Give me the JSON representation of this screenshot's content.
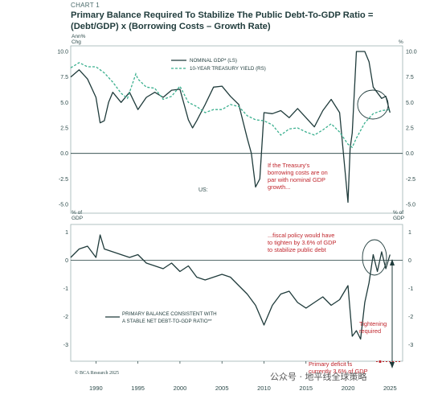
{
  "header": {
    "chart_label": "CHART 1",
    "title_line1": "Primary Balance Required To Stabilize The Public Debt-To-GDP Ratio =",
    "title_line2": "(Debt/GDP) x (Borrowing Costs – Growth Rate)"
  },
  "colors": {
    "nominal_gdp": "#1f3b3b",
    "treasury_yield": "#3bb08f",
    "primary_balance": "#1f3b3b",
    "annotation": "#c0262d"
  },
  "chart_data": [
    {
      "type": "line",
      "panel": "top",
      "region_label": "US:",
      "y_unit_left": "Ann%\nChg",
      "y_unit_right": "%",
      "ylim": [
        -5.0,
        10.0
      ],
      "yticks": [
        "10.0",
        "7.5",
        "5.0",
        "2.5",
        "0.0",
        "-2.5",
        "-5.0"
      ],
      "xlim": [
        1987,
        2026.5
      ],
      "series": [
        {
          "name": "NOMINAL GDP* (LS)",
          "style": "solid",
          "x": [
            1987,
            1988,
            1989,
            1990,
            1990.5,
            1991,
            1991.5,
            1992,
            1993,
            1994,
            1995,
            1996,
            1997,
            1998,
            1999,
            2000,
            2001,
            2001.5,
            2002,
            2003,
            2004,
            2005,
            2006,
            2007,
            2008,
            2008.5,
            2009,
            2009.5,
            2010,
            2011,
            2012,
            2013,
            2014,
            2015,
            2016,
            2017,
            2018,
            2019,
            2020,
            2020.25,
            2020.5,
            2021,
            2021.5,
            2022,
            2022.5,
            2023,
            2024,
            2024.5,
            2025
          ],
          "y": [
            7.5,
            8.2,
            7.3,
            5.5,
            3.0,
            3.2,
            5.0,
            6.0,
            5.0,
            6.0,
            4.3,
            5.5,
            6.0,
            5.5,
            6.2,
            6.3,
            3.3,
            2.5,
            3.2,
            4.8,
            6.5,
            6.6,
            5.6,
            4.8,
            1.5,
            0.0,
            -3.3,
            -2.5,
            4.0,
            3.9,
            4.2,
            3.5,
            4.4,
            3.5,
            2.6,
            4.2,
            5.3,
            4.0,
            -4.8,
            0.5,
            2.0,
            10.0,
            10.0,
            10.0,
            9.0,
            6.5,
            5.4,
            5.6,
            4.0
          ]
        },
        {
          "name": "10-YEAR TREASURY YIELD (RS)",
          "style": "dashed",
          "x": [
            1987,
            1988,
            1989,
            1990,
            1991,
            1992,
            1993,
            1993.75,
            1994.75,
            1995,
            1996,
            1997,
            1998,
            1999,
            2000,
            2001,
            2002,
            2003,
            2004,
            2005,
            2006,
            2007,
            2008,
            2009,
            2010,
            2011,
            2012,
            2013,
            2014,
            2015,
            2016,
            2017,
            2018,
            2019,
            2020,
            2020.5,
            2021,
            2022,
            2023,
            2024,
            2025
          ],
          "y": [
            8.4,
            8.9,
            8.5,
            8.5,
            7.9,
            7.0,
            5.9,
            5.4,
            7.8,
            7.3,
            6.5,
            6.4,
            5.3,
            5.6,
            6.6,
            5.0,
            4.6,
            4.0,
            4.3,
            4.3,
            4.8,
            4.6,
            3.7,
            3.3,
            3.2,
            2.8,
            1.8,
            2.4,
            2.5,
            2.1,
            1.8,
            2.3,
            2.9,
            2.1,
            0.9,
            0.6,
            1.5,
            3.0,
            3.9,
            4.2,
            4.3
          ]
        }
      ],
      "annotations": [
        "If the Treasury's",
        "borrowing costs are on",
        "par with nominal GDP",
        "growth..."
      ]
    },
    {
      "type": "line",
      "panel": "bottom",
      "y_unit_left": "% of\nGDP",
      "y_unit_right": "% of\nGDP",
      "ylim": [
        -3.9,
        1.1
      ],
      "yticks": [
        "1",
        "0",
        "-1",
        "-2",
        "-3"
      ],
      "xlim": [
        1987,
        2026.5
      ],
      "xticks": [
        "1990",
        "1995",
        "2000",
        "2005",
        "2010",
        "2015",
        "2020",
        "2025"
      ],
      "xtick_values": [
        1990,
        1995,
        2000,
        2005,
        2010,
        2015,
        2020,
        2025
      ],
      "series": [
        {
          "name": "PRIMARY BALANCE CONSISTENT WITH A STABLE NET DEBT-TO-GDP RATIO**",
          "style": "solid",
          "x": [
            1987,
            1988,
            1989,
            1990,
            1990.5,
            1991,
            1992,
            1993,
            1994,
            1995,
            1996,
            1997,
            1998,
            1999,
            2000,
            2001,
            2002,
            2003,
            2004,
            2005,
            2006,
            2007,
            2008,
            2009,
            2010,
            2011,
            2012,
            2013,
            2014,
            2015,
            2016,
            2017,
            2018,
            2019,
            2020,
            2020.5,
            2021,
            2021.5,
            2022,
            2022.5,
            2023,
            2023.5,
            2024,
            2024.5,
            2025
          ],
          "y": [
            0.1,
            0.4,
            0.5,
            0.1,
            0.9,
            0.4,
            0.3,
            0.2,
            0.1,
            0.2,
            -0.1,
            -0.2,
            -0.3,
            -0.1,
            -0.4,
            -0.2,
            -0.6,
            -0.7,
            -0.6,
            -0.5,
            -0.6,
            -0.9,
            -1.2,
            -1.6,
            -2.3,
            -1.6,
            -1.2,
            -1.1,
            -1.5,
            -1.7,
            -1.5,
            -1.3,
            -1.6,
            -1.4,
            -0.9,
            -2.7,
            -2.5,
            -2.8,
            -1.5,
            -0.8,
            0.2,
            -0.4,
            0.3,
            -0.3,
            0.2
          ]
        }
      ],
      "annotations": {
        "fiscal": [
          "...fiscal policy would have",
          "to tighten by 3.6% of GDP",
          "to stabilize public debt"
        ],
        "tightening": [
          "Tightening",
          "required"
        ],
        "deficit": [
          "Primary deficit is",
          "currently 3.6% of GDP"
        ]
      },
      "current_primary_deficit": -3.6
    }
  ],
  "footer": {
    "credit": "© BCA Research 2025",
    "watermark": "公众号 · 地平线全球策略"
  }
}
